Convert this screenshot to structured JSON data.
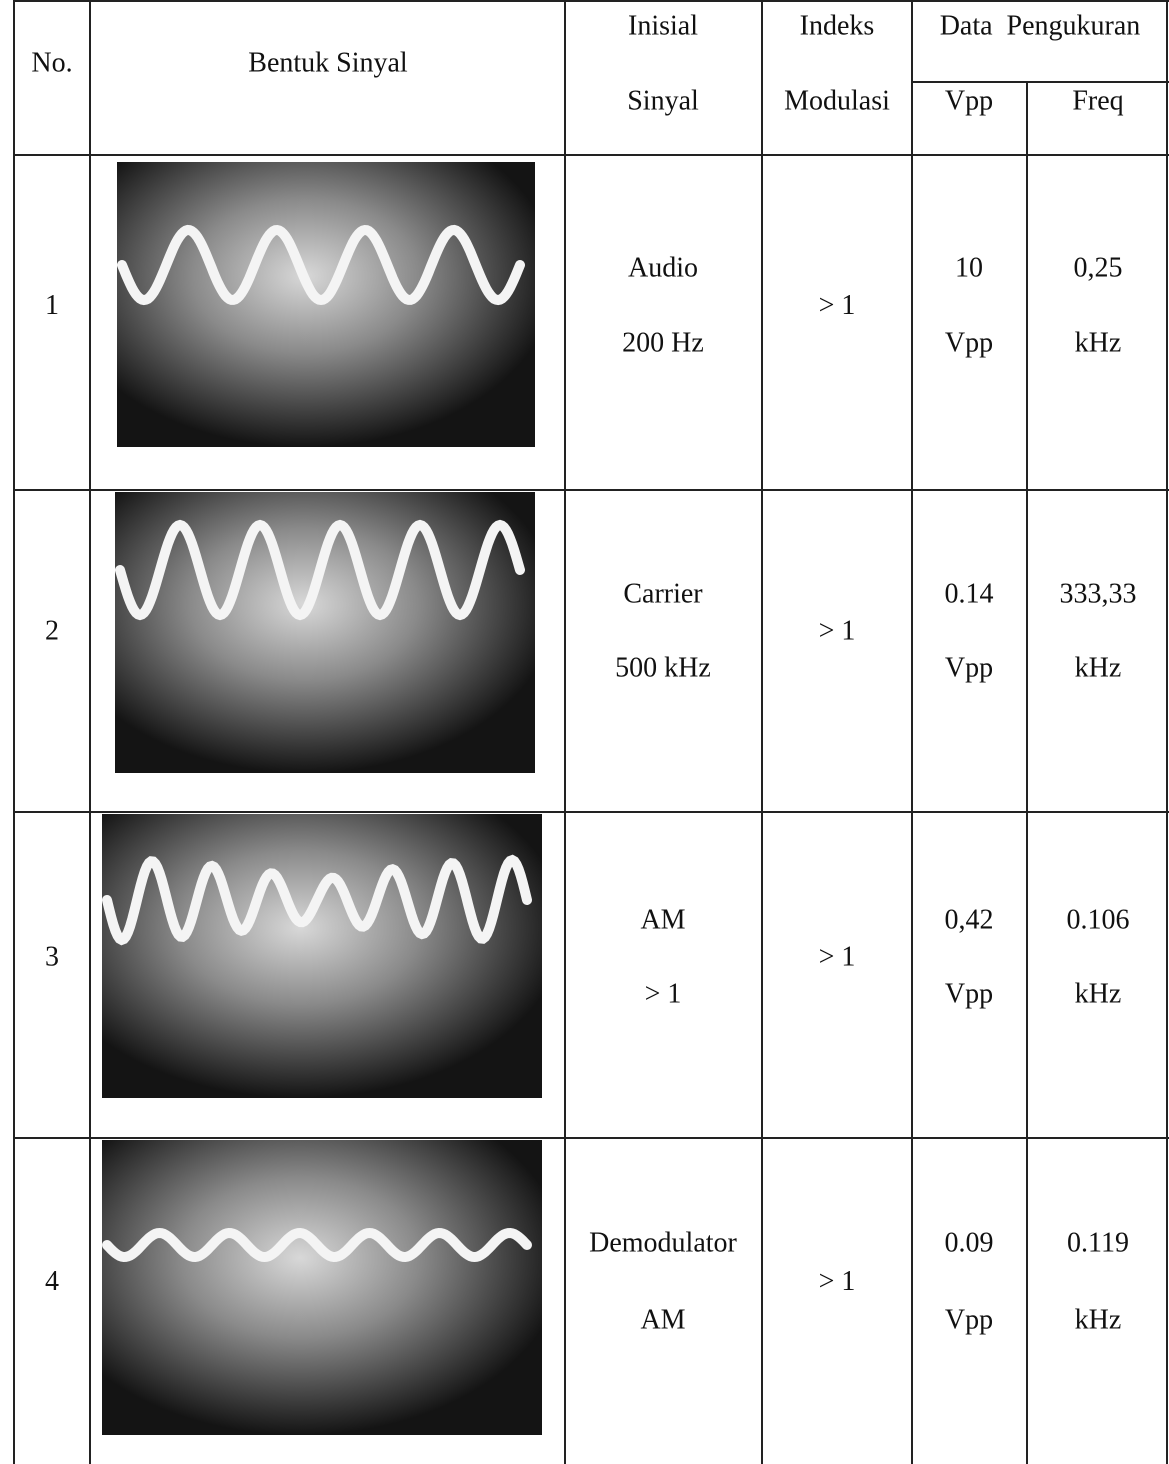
{
  "table": {
    "header": {
      "no": "No.",
      "bentuk": "Bentuk Sinyal",
      "inisial": [
        "Inisial",
        "Sinyal"
      ],
      "indeks": [
        "Indeks",
        "Modulasi"
      ],
      "data": "Data  Pengukuran",
      "vpp": "Vpp",
      "freq": "Freq"
    },
    "rows": [
      {
        "no": "1",
        "inisial": [
          "Audio",
          "200 Hz"
        ],
        "indeks": "> 1",
        "vpp": [
          "10",
          "Vpp"
        ],
        "freq": [
          "0,25",
          "kHz"
        ]
      },
      {
        "no": "2",
        "inisial": [
          "Carrier",
          "500 kHz"
        ],
        "indeks": "> 1",
        "vpp": [
          "0.14",
          "Vpp"
        ],
        "freq": [
          "333,33",
          "kHz"
        ]
      },
      {
        "no": "3",
        "inisial": [
          "AM",
          "> 1"
        ],
        "indeks": "> 1",
        "vpp": [
          "0,42",
          "Vpp"
        ],
        "freq": [
          "0.106",
          "kHz"
        ]
      },
      {
        "no": "4",
        "inisial": [
          "Demodulator",
          "AM"
        ],
        "indeks": "> 1",
        "vpp": [
          "0.09",
          "Vpp"
        ],
        "freq": [
          "0.119",
          "kHz"
        ]
      }
    ]
  }
}
